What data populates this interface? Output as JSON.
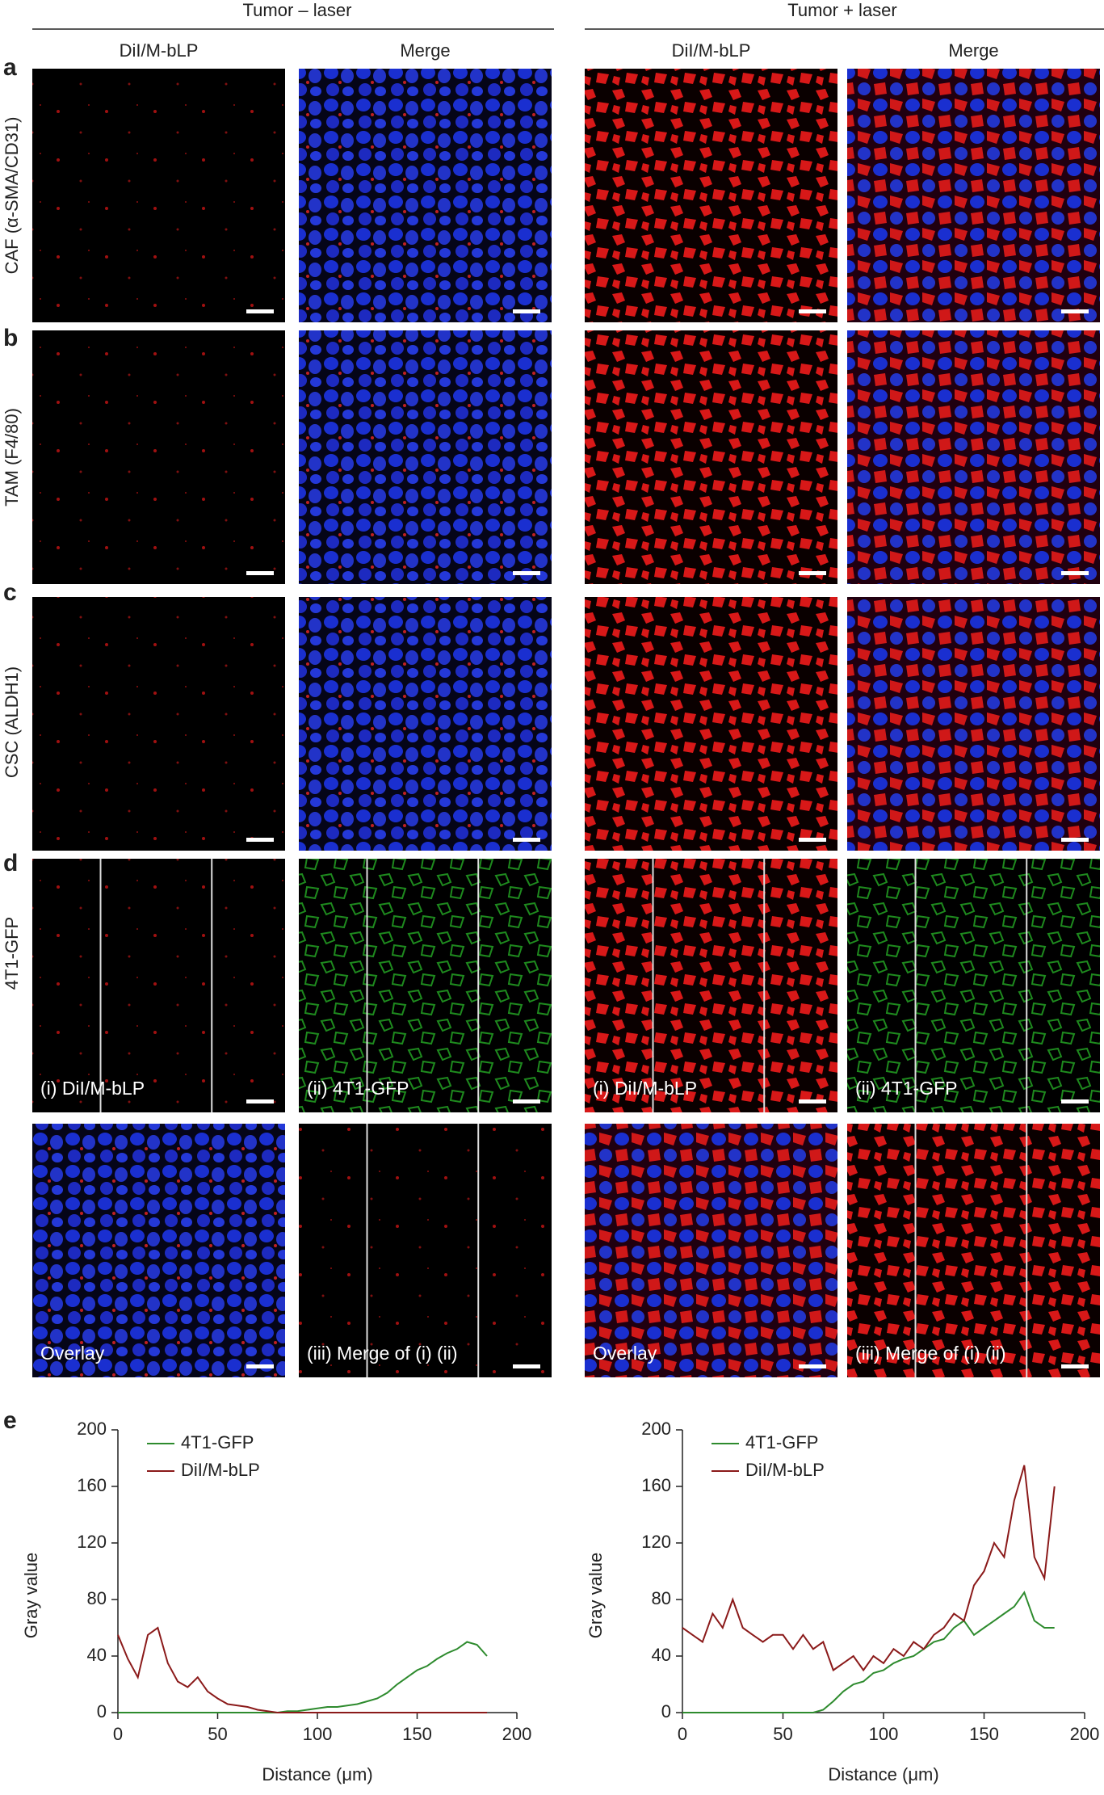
{
  "header": {
    "left_title": "Tumor – laser",
    "right_title": "Tumor + laser",
    "column_labels": [
      "DiI/M-bLP",
      "Merge",
      "DiI/M-bLP",
      "Merge"
    ]
  },
  "row_letters": [
    "a",
    "b",
    "c",
    "d",
    "e"
  ],
  "row_labels": [
    "CAF (α-SMA/CD31)",
    "TAM (F4/80)",
    "CSC (ALDH1)",
    "4T1-GFP"
  ],
  "panel_labels": [
    "(i) DiI/M-bLP",
    "(ii) 4T1-GFP",
    "Overlay",
    "(iii) Merge of (i) (ii)",
    "(i) DiI/M-bLP",
    "(ii) 4T1-GFP",
    "Overlay",
    "(iii) Merge of (i) (ii)"
  ],
  "chart_data": [
    {
      "type": "line",
      "x_label": "Distance (μm)",
      "y_label": "Gray value",
      "x": [
        0,
        5,
        10,
        15,
        20,
        25,
        30,
        35,
        40,
        45,
        50,
        55,
        60,
        65,
        70,
        75,
        80,
        85,
        90,
        95,
        100,
        105,
        110,
        115,
        120,
        125,
        130,
        135,
        140,
        145,
        150,
        155,
        160,
        165,
        170,
        175,
        180,
        185
      ],
      "series": [
        {
          "name": "4T1-GFP",
          "color": "#2e8b2e",
          "values": [
            0,
            0,
            0,
            0,
            0,
            0,
            0,
            0,
            0,
            0,
            0,
            0,
            0,
            0,
            0,
            0,
            0,
            1,
            1,
            2,
            3,
            4,
            4,
            5,
            6,
            8,
            10,
            14,
            20,
            25,
            30,
            33,
            38,
            42,
            45,
            50,
            48,
            40
          ]
        },
        {
          "name": "DiI/M-bLP",
          "color": "#8b1a1a",
          "values": [
            55,
            38,
            25,
            55,
            60,
            35,
            22,
            18,
            25,
            15,
            10,
            6,
            5,
            4,
            2,
            1,
            0,
            0,
            0,
            0,
            0,
            0,
            0,
            0,
            0,
            0,
            0,
            0,
            0,
            0,
            0,
            0,
            0,
            0,
            0,
            0,
            0,
            0
          ]
        }
      ],
      "xlim": [
        0,
        200
      ],
      "ylim": [
        0,
        200
      ],
      "xticks": [
        0,
        50,
        100,
        150,
        200
      ],
      "yticks": [
        0,
        40,
        80,
        120,
        160,
        200
      ]
    },
    {
      "type": "line",
      "x_label": "Distance (μm)",
      "y_label": "Gray value",
      "x": [
        0,
        5,
        10,
        15,
        20,
        25,
        30,
        35,
        40,
        45,
        50,
        55,
        60,
        65,
        70,
        75,
        80,
        85,
        90,
        95,
        100,
        105,
        110,
        115,
        120,
        125,
        130,
        135,
        140,
        145,
        150,
        155,
        160,
        165,
        170,
        175,
        180,
        185
      ],
      "series": [
        {
          "name": "4T1-GFP",
          "color": "#2e8b2e",
          "values": [
            0,
            0,
            0,
            0,
            0,
            0,
            0,
            0,
            0,
            0,
            0,
            0,
            0,
            0,
            2,
            8,
            15,
            20,
            22,
            28,
            30,
            35,
            38,
            40,
            45,
            50,
            52,
            60,
            65,
            55,
            60,
            65,
            70,
            75,
            85,
            65,
            60,
            60
          ]
        },
        {
          "name": "DiI/M-bLP",
          "color": "#8b1a1a",
          "values": [
            60,
            55,
            50,
            70,
            60,
            80,
            60,
            55,
            50,
            55,
            55,
            45,
            55,
            45,
            50,
            30,
            35,
            40,
            30,
            40,
            35,
            45,
            40,
            50,
            45,
            55,
            60,
            70,
            65,
            90,
            100,
            120,
            110,
            150,
            175,
            110,
            95,
            160
          ]
        }
      ],
      "xlim": [
        0,
        200
      ],
      "ylim": [
        0,
        200
      ],
      "xticks": [
        0,
        50,
        100,
        150,
        200
      ],
      "yticks": [
        0,
        40,
        80,
        120,
        160,
        200
      ]
    }
  ]
}
